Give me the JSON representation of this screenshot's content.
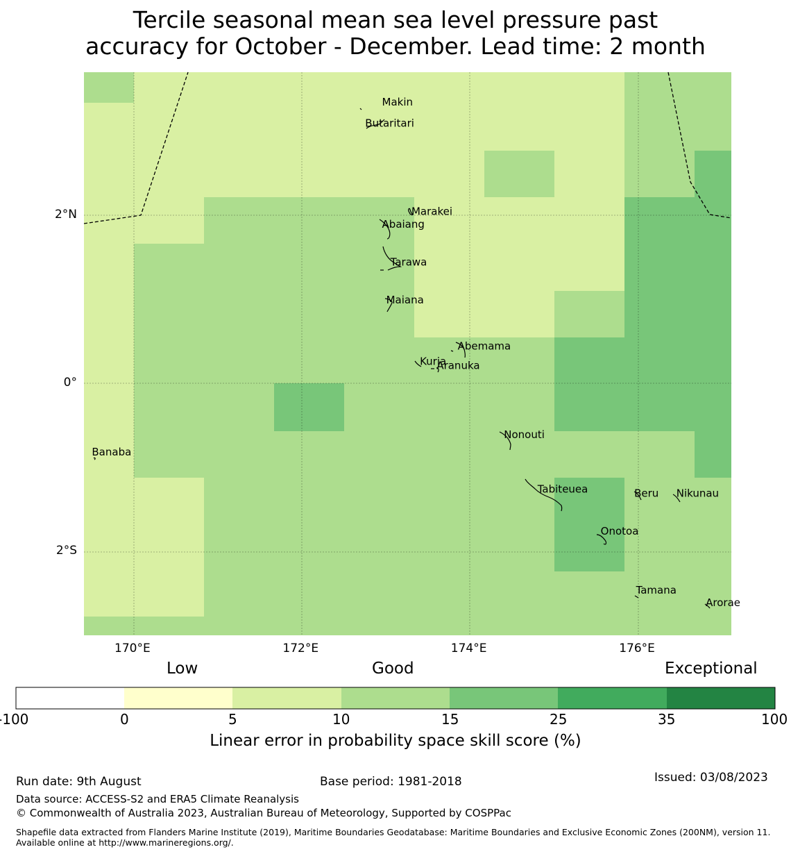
{
  "title_line1": "Tercile seasonal mean sea level pressure past",
  "title_line2": "accuracy for October - December. Lead time: 2 month",
  "map": {
    "lon_ticks": [
      {
        "value": 170,
        "label": "170°E"
      },
      {
        "value": 172,
        "label": "172°E"
      },
      {
        "value": 174,
        "label": "174°E"
      },
      {
        "value": 176,
        "label": "176°E"
      }
    ],
    "lat_ticks": [
      {
        "value": 2,
        "label": "2°N"
      },
      {
        "value": 0,
        "label": "0°"
      },
      {
        "value": -2,
        "label": "2°S"
      }
    ],
    "islands": [
      {
        "name": "Makin",
        "lon": 172.95,
        "lat": 3.3
      },
      {
        "name": "Butaritari",
        "lon": 172.75,
        "lat": 3.05
      },
      {
        "name": "Marakei",
        "lon": 173.3,
        "lat": 2.0
      },
      {
        "name": "Abaiang",
        "lon": 172.95,
        "lat": 1.85
      },
      {
        "name": "Tarawa",
        "lon": 173.05,
        "lat": 1.4
      },
      {
        "name": "Maiana",
        "lon": 173.0,
        "lat": 0.95
      },
      {
        "name": "Abemama",
        "lon": 173.85,
        "lat": 0.4
      },
      {
        "name": "Kuria",
        "lon": 173.4,
        "lat": 0.22
      },
      {
        "name": "Aranuka",
        "lon": 173.6,
        "lat": 0.17
      },
      {
        "name": "Nonouti",
        "lon": 174.4,
        "lat": -0.65
      },
      {
        "name": "Banaba",
        "lon": 169.5,
        "lat": -0.86
      },
      {
        "name": "Tabiteuea",
        "lon": 174.8,
        "lat": -1.3
      },
      {
        "name": "Beru",
        "lon": 175.95,
        "lat": -1.35
      },
      {
        "name": "Nikunau",
        "lon": 176.45,
        "lat": -1.35
      },
      {
        "name": "Onotoa",
        "lon": 175.55,
        "lat": -1.8
      },
      {
        "name": "Tamana",
        "lon": 175.97,
        "lat": -2.5
      },
      {
        "name": "Arorae",
        "lon": 176.8,
        "lat": -2.65
      }
    ]
  },
  "colorbar": {
    "categories": [
      "Low",
      "Good",
      "Exceptional"
    ],
    "levels": [
      "-100",
      "0",
      "5",
      "10",
      "15",
      "25",
      "35",
      "100"
    ],
    "colors": [
      "#ffffff",
      "#ffffcc",
      "#d9f0a3",
      "#addd8e",
      "#78c679",
      "#41ab5d",
      "#238443"
    ],
    "title": "Linear error in probability space skill score (%)"
  },
  "footer": {
    "run_date": "Run date: 9th August",
    "base_period": "Base period: 1981-2018",
    "issued": "Issued: 03/08/2023",
    "data_source": "Data source: ACCESS-S2 and ERA5 Climate Reanalysis",
    "copyright": "© Commonwealth of Australia 2023, Australian Bureau of Meteorology, Supported by COSPPac",
    "shapefile": "Shapefile data extracted from Flanders Marine Institute (2019), Maritime Boundaries Geodatabase: Maritime Boundaries and Exclusive Economic Zones (200NM), version 11. Available online at http://www.marineregions.org/."
  }
}
